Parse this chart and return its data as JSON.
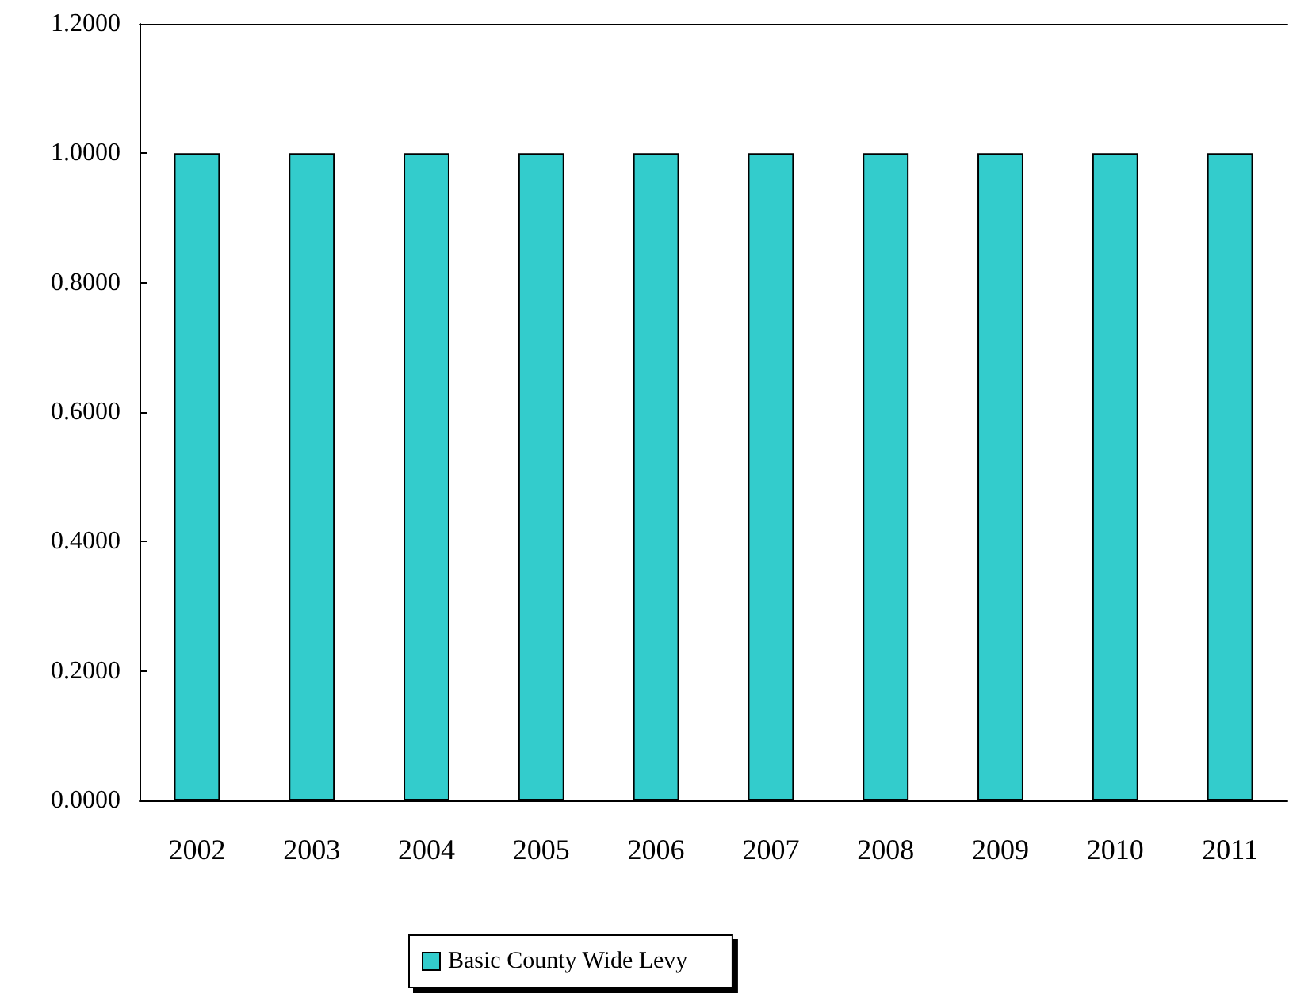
{
  "chart_data": {
    "type": "bar",
    "categories": [
      "2002",
      "2003",
      "2004",
      "2005",
      "2006",
      "2007",
      "2008",
      "2009",
      "2010",
      "2011"
    ],
    "series": [
      {
        "name": "Basic County Wide Levy",
        "color": "#33cccc",
        "values": [
          1,
          1,
          1,
          1,
          1,
          1,
          1,
          1,
          1,
          1
        ]
      }
    ],
    "ylim": [
      0,
      1.2
    ],
    "yticks": [
      {
        "value": 0,
        "label": "0.0000"
      },
      {
        "value": 0.2,
        "label": "0.2000"
      },
      {
        "value": 0.4,
        "label": "0.4000"
      },
      {
        "value": 0.6,
        "label": "0.6000"
      },
      {
        "value": 0.8,
        "label": "0.8000"
      },
      {
        "value": 1,
        "label": "1.0000"
      },
      {
        "value": 1.2,
        "label": "1.2000"
      }
    ],
    "grid": false,
    "legend": "bottom"
  }
}
